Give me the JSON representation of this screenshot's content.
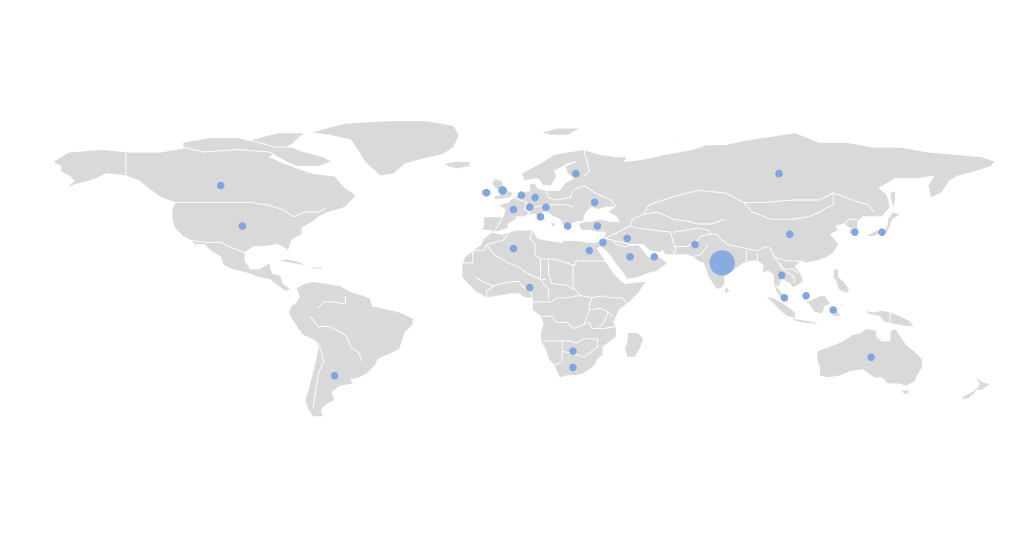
{
  "map": {
    "type": "bubble-map",
    "colors": {
      "land": "#d9d9d9",
      "borders": "#ffffff",
      "bubble": "#7fa5e2",
      "background": "#ffffff"
    }
  },
  "chart_data": {
    "type": "scatter",
    "description_values_are_relative_bubble_sizes": true,
    "points": [
      {
        "lon": -106,
        "lat": 56,
        "size": 1
      },
      {
        "lon": -98,
        "lat": 39,
        "size": 1
      },
      {
        "lon": -64,
        "lat": -34,
        "size": 1
      },
      {
        "lon": -8,
        "lat": 53,
        "size": 1
      },
      {
        "lon": -2,
        "lat": 54,
        "size": 1.3
      },
      {
        "lon": 5,
        "lat": 52,
        "size": 1
      },
      {
        "lon": 10,
        "lat": 51,
        "size": 1
      },
      {
        "lon": 2,
        "lat": 46,
        "size": 1
      },
      {
        "lon": 8,
        "lat": 47,
        "size": 1
      },
      {
        "lon": 14,
        "lat": 47,
        "size": 1
      },
      {
        "lon": 12,
        "lat": 43,
        "size": 1
      },
      {
        "lon": 25,
        "lat": 61,
        "size": 1
      },
      {
        "lon": 32,
        "lat": 49,
        "size": 1
      },
      {
        "lon": 33,
        "lat": 39,
        "size": 1
      },
      {
        "lon": 22,
        "lat": 39,
        "size": 1
      },
      {
        "lon": 2,
        "lat": 28,
        "size": 1
      },
      {
        "lon": 30,
        "lat": 27,
        "size": 1
      },
      {
        "lon": 35,
        "lat": 31,
        "size": 1
      },
      {
        "lon": 44,
        "lat": 33,
        "size": 1
      },
      {
        "lon": 45,
        "lat": 24,
        "size": 1
      },
      {
        "lon": 54,
        "lat": 24,
        "size": 1
      },
      {
        "lon": 8,
        "lat": 9,
        "size": 1
      },
      {
        "lon": 24,
        "lat": -22,
        "size": 1
      },
      {
        "lon": 24,
        "lat": -30,
        "size": 1
      },
      {
        "lon": 69,
        "lat": 30,
        "size": 1
      },
      {
        "lon": 79,
        "lat": 21,
        "size": 8.5
      },
      {
        "lon": 100,
        "lat": 61,
        "size": 1
      },
      {
        "lon": 104,
        "lat": 35,
        "size": 1
      },
      {
        "lon": 128,
        "lat": 36,
        "size": 1
      },
      {
        "lon": 138,
        "lat": 36,
        "size": 1
      },
      {
        "lon": 101,
        "lat": 15,
        "size": 1
      },
      {
        "lon": 102,
        "lat": 4,
        "size": 1
      },
      {
        "lon": 110,
        "lat": 5,
        "size": 1
      },
      {
        "lon": 120,
        "lat": -2,
        "size": 1
      },
      {
        "lon": 134,
        "lat": -25,
        "size": 1
      }
    ]
  }
}
